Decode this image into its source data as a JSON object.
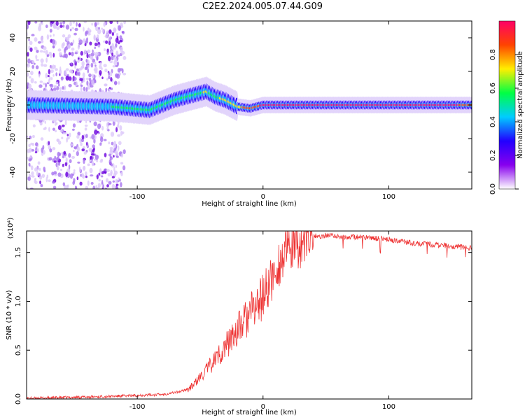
{
  "title": "C2E2.2024.005.07.44.G09",
  "colors": {
    "snr_line": "#ee3333",
    "axes": "#000000"
  },
  "chart_data": [
    {
      "type": "heatmap",
      "xlabel": "Height of straight line (km)",
      "ylabel": "Frequency (Hz)",
      "xlim": [
        -188,
        166
      ],
      "ylim": [
        -50,
        50
      ],
      "x_ticks": [
        -100,
        0,
        100
      ],
      "y_ticks": [
        -40,
        -20,
        0,
        20,
        40
      ],
      "colorbar": {
        "label": "Normalized spectral amplitude",
        "range": [
          0,
          1
        ],
        "ticks": [
          "0.0",
          "0.2",
          "0.4",
          "0.6",
          "0.8"
        ],
        "colormap": [
          "#ffffff",
          "#8800ee",
          "#2200ff",
          "#00ccff",
          "#00ff44",
          "#ffee00",
          "#ff4400",
          "#ff0066"
        ]
      },
      "ridge": {
        "description_free": true,
        "x": [
          -188,
          -120,
          -90,
          -70,
          -55,
          -45,
          -38,
          -30,
          -20,
          -10,
          0,
          20,
          60,
          100,
          140,
          166
        ],
        "center_hz": [
          0,
          -1,
          -3,
          3,
          6,
          8,
          5,
          3,
          -1,
          -2,
          0,
          0,
          0,
          0,
          0,
          0
        ],
        "peak_amplitude": [
          0.4,
          0.5,
          0.55,
          0.6,
          0.62,
          0.65,
          0.6,
          0.7,
          0.75,
          0.85,
          0.95,
          0.95,
          0.97,
          0.98,
          0.97,
          0.9
        ]
      }
    },
    {
      "type": "line",
      "xlabel": "Height of straight line (km)",
      "ylabel": "SNR (10 * v/v)",
      "y_multiplier": "(x10⁴)",
      "xlim": [
        -188,
        166
      ],
      "ylim": [
        0,
        1.72
      ],
      "x_ticks": [
        -100,
        0,
        100
      ],
      "y_ticks": [
        "0.0",
        "0.5",
        "1.0",
        "1.5"
      ],
      "series": [
        {
          "x": [
            -188,
            -150,
            -120,
            -100,
            -80,
            -65,
            -58,
            -52,
            -47,
            -42,
            -37,
            -32,
            -27,
            -22,
            -17,
            -12,
            -8,
            -4,
            0,
            4,
            8,
            12,
            16,
            20,
            25,
            30,
            35,
            40,
            50,
            60,
            80,
            100,
            120,
            140,
            166
          ],
          "values": [
            0.01,
            0.02,
            0.03,
            0.04,
            0.05,
            0.08,
            0.12,
            0.2,
            0.28,
            0.36,
            0.45,
            0.52,
            0.62,
            0.72,
            0.8,
            0.88,
            0.95,
            1.02,
            1.1,
            1.2,
            1.3,
            1.42,
            1.5,
            1.57,
            1.6,
            1.63,
            1.66,
            1.67,
            1.68,
            1.67,
            1.66,
            1.64,
            1.6,
            1.58,
            1.55
          ]
        }
      ]
    }
  ]
}
